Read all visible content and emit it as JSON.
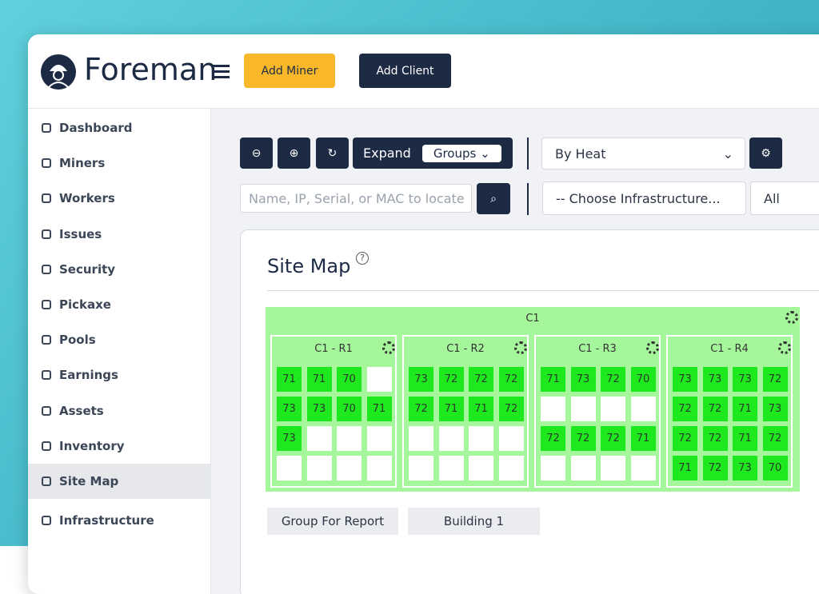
{
  "header": {
    "brand": "Foreman",
    "buttons": [
      "Add Miner",
      "Add Client"
    ]
  },
  "sidebar": {
    "items": [
      "Dashboard",
      "Miners",
      "Workers",
      "Issues",
      "Security",
      "Pickaxe",
      "Pools",
      "Earnings",
      "Assets",
      "Inventory",
      "Site Map",
      "Infrastructure"
    ]
  },
  "toolbar": {
    "expand": "Expand",
    "groups": "Groups",
    "view": "By Heat",
    "search_placeholder": "Name, IP, Serial, or MAC to locate",
    "infrastructure": "-- Choose Infrastructure...",
    "filter": "All"
  },
  "site_map": {
    "title": "Site Map",
    "container": "C1",
    "racks": [
      {
        "name": "C1 - R1",
        "cells": [
          71,
          71,
          70,
          null,
          73,
          73,
          70,
          71,
          73,
          null,
          null,
          null,
          null,
          null,
          null,
          null
        ]
      },
      {
        "name": "C1 - R2",
        "cells": [
          73,
          72,
          72,
          72,
          72,
          71,
          71,
          72,
          null,
          null,
          null,
          null,
          null,
          null,
          null,
          null
        ]
      },
      {
        "name": "C1 - R3",
        "cells": [
          71,
          73,
          72,
          70,
          null,
          null,
          null,
          null,
          72,
          72,
          72,
          71,
          null,
          null,
          null,
          null
        ]
      },
      {
        "name": "C1 - R4",
        "cells": [
          73,
          73,
          73,
          72,
          72,
          72,
          71,
          73,
          72,
          72,
          71,
          72,
          71,
          72,
          73,
          70
        ]
      }
    ],
    "tabs": [
      "Group For Report",
      "Building 1"
    ]
  }
}
